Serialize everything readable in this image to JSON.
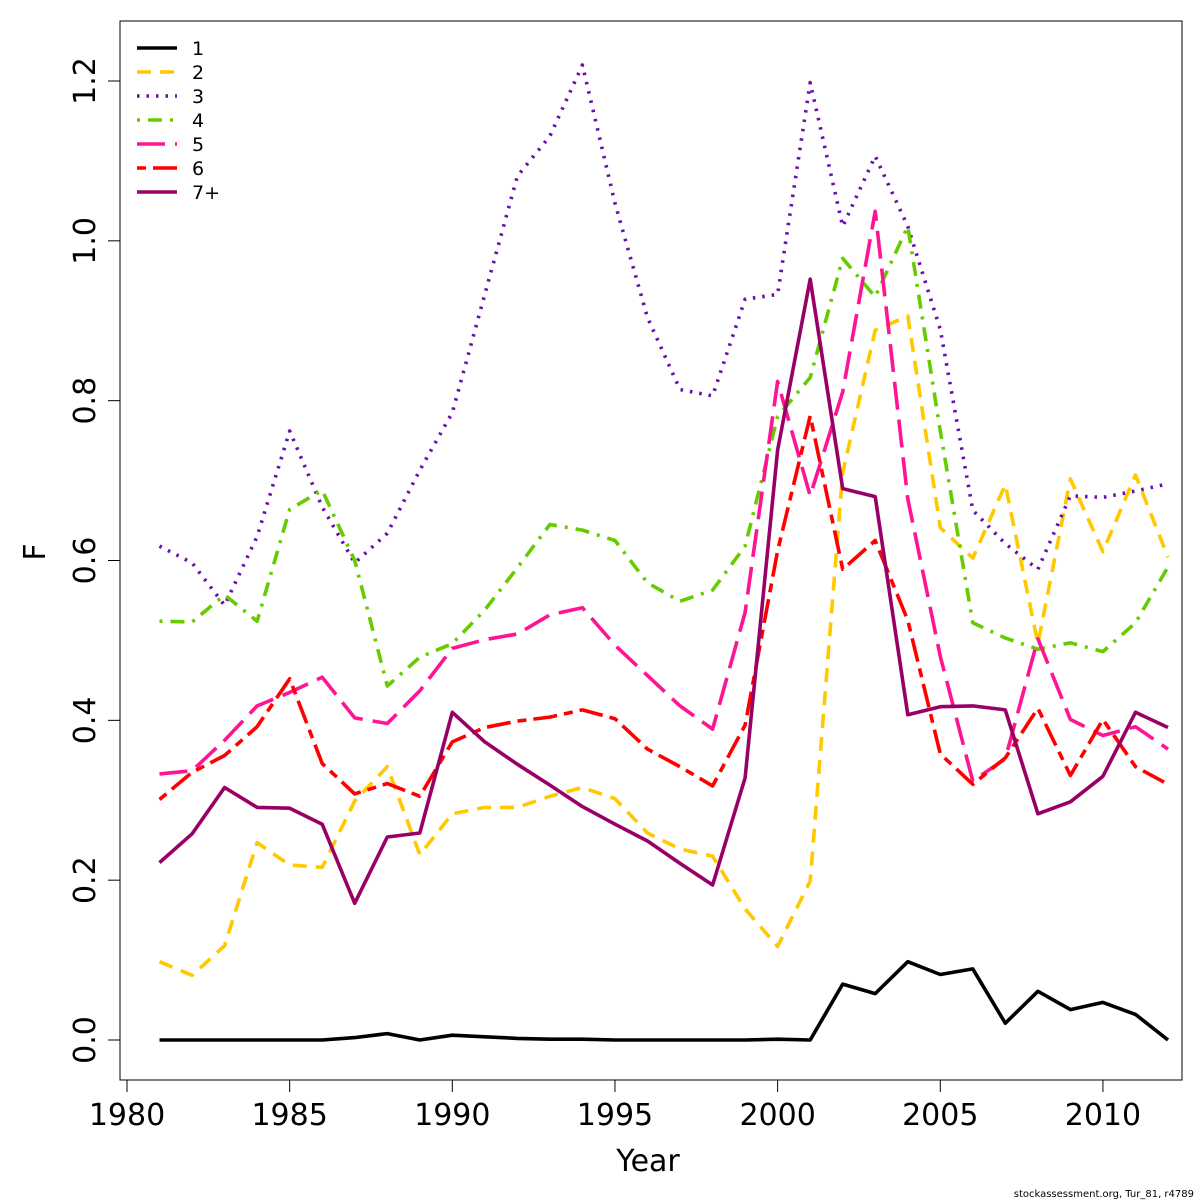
{
  "chart_data": {
    "type": "line",
    "xlabel": "Year",
    "ylabel": "F",
    "xlim": [
      1980,
      2012
    ],
    "ylim": [
      0,
      1.2
    ],
    "grid": false,
    "legend_position": "top-left",
    "x_ticks": [
      1980,
      1985,
      1990,
      1995,
      2000,
      2005,
      2010
    ],
    "y_ticks": [
      "0.0",
      "0.2",
      "0.4",
      "0.6",
      "0.8",
      "1.0",
      "1.2"
    ],
    "x": [
      1981,
      1982,
      1983,
      1984,
      1985,
      1986,
      1987,
      1988,
      1989,
      1990,
      1991,
      1992,
      1993,
      1994,
      1995,
      1996,
      1997,
      1998,
      1999,
      2000,
      2001,
      2002,
      2003,
      2004,
      2005,
      2006,
      2007,
      2008,
      2009,
      2010,
      2011,
      2012
    ],
    "series": [
      {
        "name": "1",
        "color": "#000000",
        "dash": "solid",
        "values": [
          0.0,
          0.0,
          0.0,
          0.0,
          0.0,
          0.0,
          0.003,
          0.008,
          0.0,
          0.006,
          0.004,
          0.002,
          0.001,
          0.001,
          0.0,
          0.0,
          0.0,
          0.0,
          0.0,
          0.001,
          0.0,
          0.07,
          0.058,
          0.098,
          0.082,
          0.089,
          0.021,
          0.061,
          0.038,
          0.047,
          0.032,
          0.0
        ]
      },
      {
        "name": "2",
        "color": "#FFC800",
        "dash": "dash",
        "values": [
          0.098,
          0.081,
          0.118,
          0.247,
          0.219,
          0.216,
          0.299,
          0.342,
          0.232,
          0.283,
          0.291,
          0.291,
          0.305,
          0.316,
          0.302,
          0.259,
          0.239,
          0.23,
          0.164,
          0.117,
          0.199,
          0.71,
          0.888,
          0.906,
          0.641,
          0.603,
          0.695,
          0.496,
          0.702,
          0.611,
          0.707,
          0.604
        ]
      },
      {
        "name": "3",
        "color": "#6A0DAD",
        "dash": "dot",
        "values": [
          0.618,
          0.597,
          0.544,
          0.63,
          0.762,
          0.667,
          0.597,
          0.634,
          0.713,
          0.785,
          0.933,
          1.081,
          1.131,
          1.22,
          1.047,
          0.904,
          0.814,
          0.806,
          0.927,
          0.933,
          1.198,
          1.018,
          1.106,
          1.018,
          0.889,
          0.663,
          0.621,
          0.589,
          0.681,
          0.679,
          0.687,
          0.696
        ]
      },
      {
        "name": "4",
        "color": "#66CC00",
        "dash": "dashdot",
        "values": [
          0.524,
          0.523,
          0.557,
          0.524,
          0.664,
          0.688,
          0.6,
          0.443,
          0.479,
          0.496,
          0.538,
          0.591,
          0.645,
          0.638,
          0.625,
          0.572,
          0.549,
          0.563,
          0.618,
          0.78,
          0.829,
          0.978,
          0.93,
          1.018,
          0.762,
          0.522,
          0.503,
          0.489,
          0.497,
          0.486,
          0.522,
          0.592
        ]
      },
      {
        "name": "5",
        "color": "#FF1493",
        "dash": "longdash",
        "values": [
          0.333,
          0.337,
          0.375,
          0.418,
          0.435,
          0.454,
          0.403,
          0.396,
          0.437,
          0.49,
          0.501,
          0.508,
          0.532,
          0.541,
          0.494,
          0.456,
          0.418,
          0.389,
          0.535,
          0.824,
          0.681,
          0.811,
          1.037,
          0.677,
          0.48,
          0.324,
          0.352,
          0.502,
          0.401,
          0.381,
          0.392,
          0.364
        ]
      },
      {
        "name": "6",
        "color": "#FF0000",
        "dash": "twodash",
        "values": [
          0.301,
          0.335,
          0.356,
          0.392,
          0.452,
          0.346,
          0.308,
          0.321,
          0.305,
          0.373,
          0.391,
          0.399,
          0.404,
          0.413,
          0.402,
          0.364,
          0.342,
          0.318,
          0.394,
          0.612,
          0.781,
          0.589,
          0.625,
          0.525,
          0.358,
          0.32,
          0.353,
          0.415,
          0.331,
          0.401,
          0.342,
          0.32
        ]
      },
      {
        "name": "7+",
        "color": "#990066",
        "dash": "solid",
        "values": [
          0.222,
          0.258,
          0.316,
          0.291,
          0.29,
          0.27,
          0.171,
          0.254,
          0.259,
          0.41,
          0.373,
          0.345,
          0.319,
          0.292,
          0.27,
          0.249,
          0.221,
          0.194,
          0.328,
          0.738,
          0.952,
          0.69,
          0.68,
          0.407,
          0.417,
          0.418,
          0.413,
          0.283,
          0.298,
          0.33,
          0.41,
          0.391
        ]
      }
    ]
  },
  "credit": "stockassessment.org, Tur_81, r4789"
}
